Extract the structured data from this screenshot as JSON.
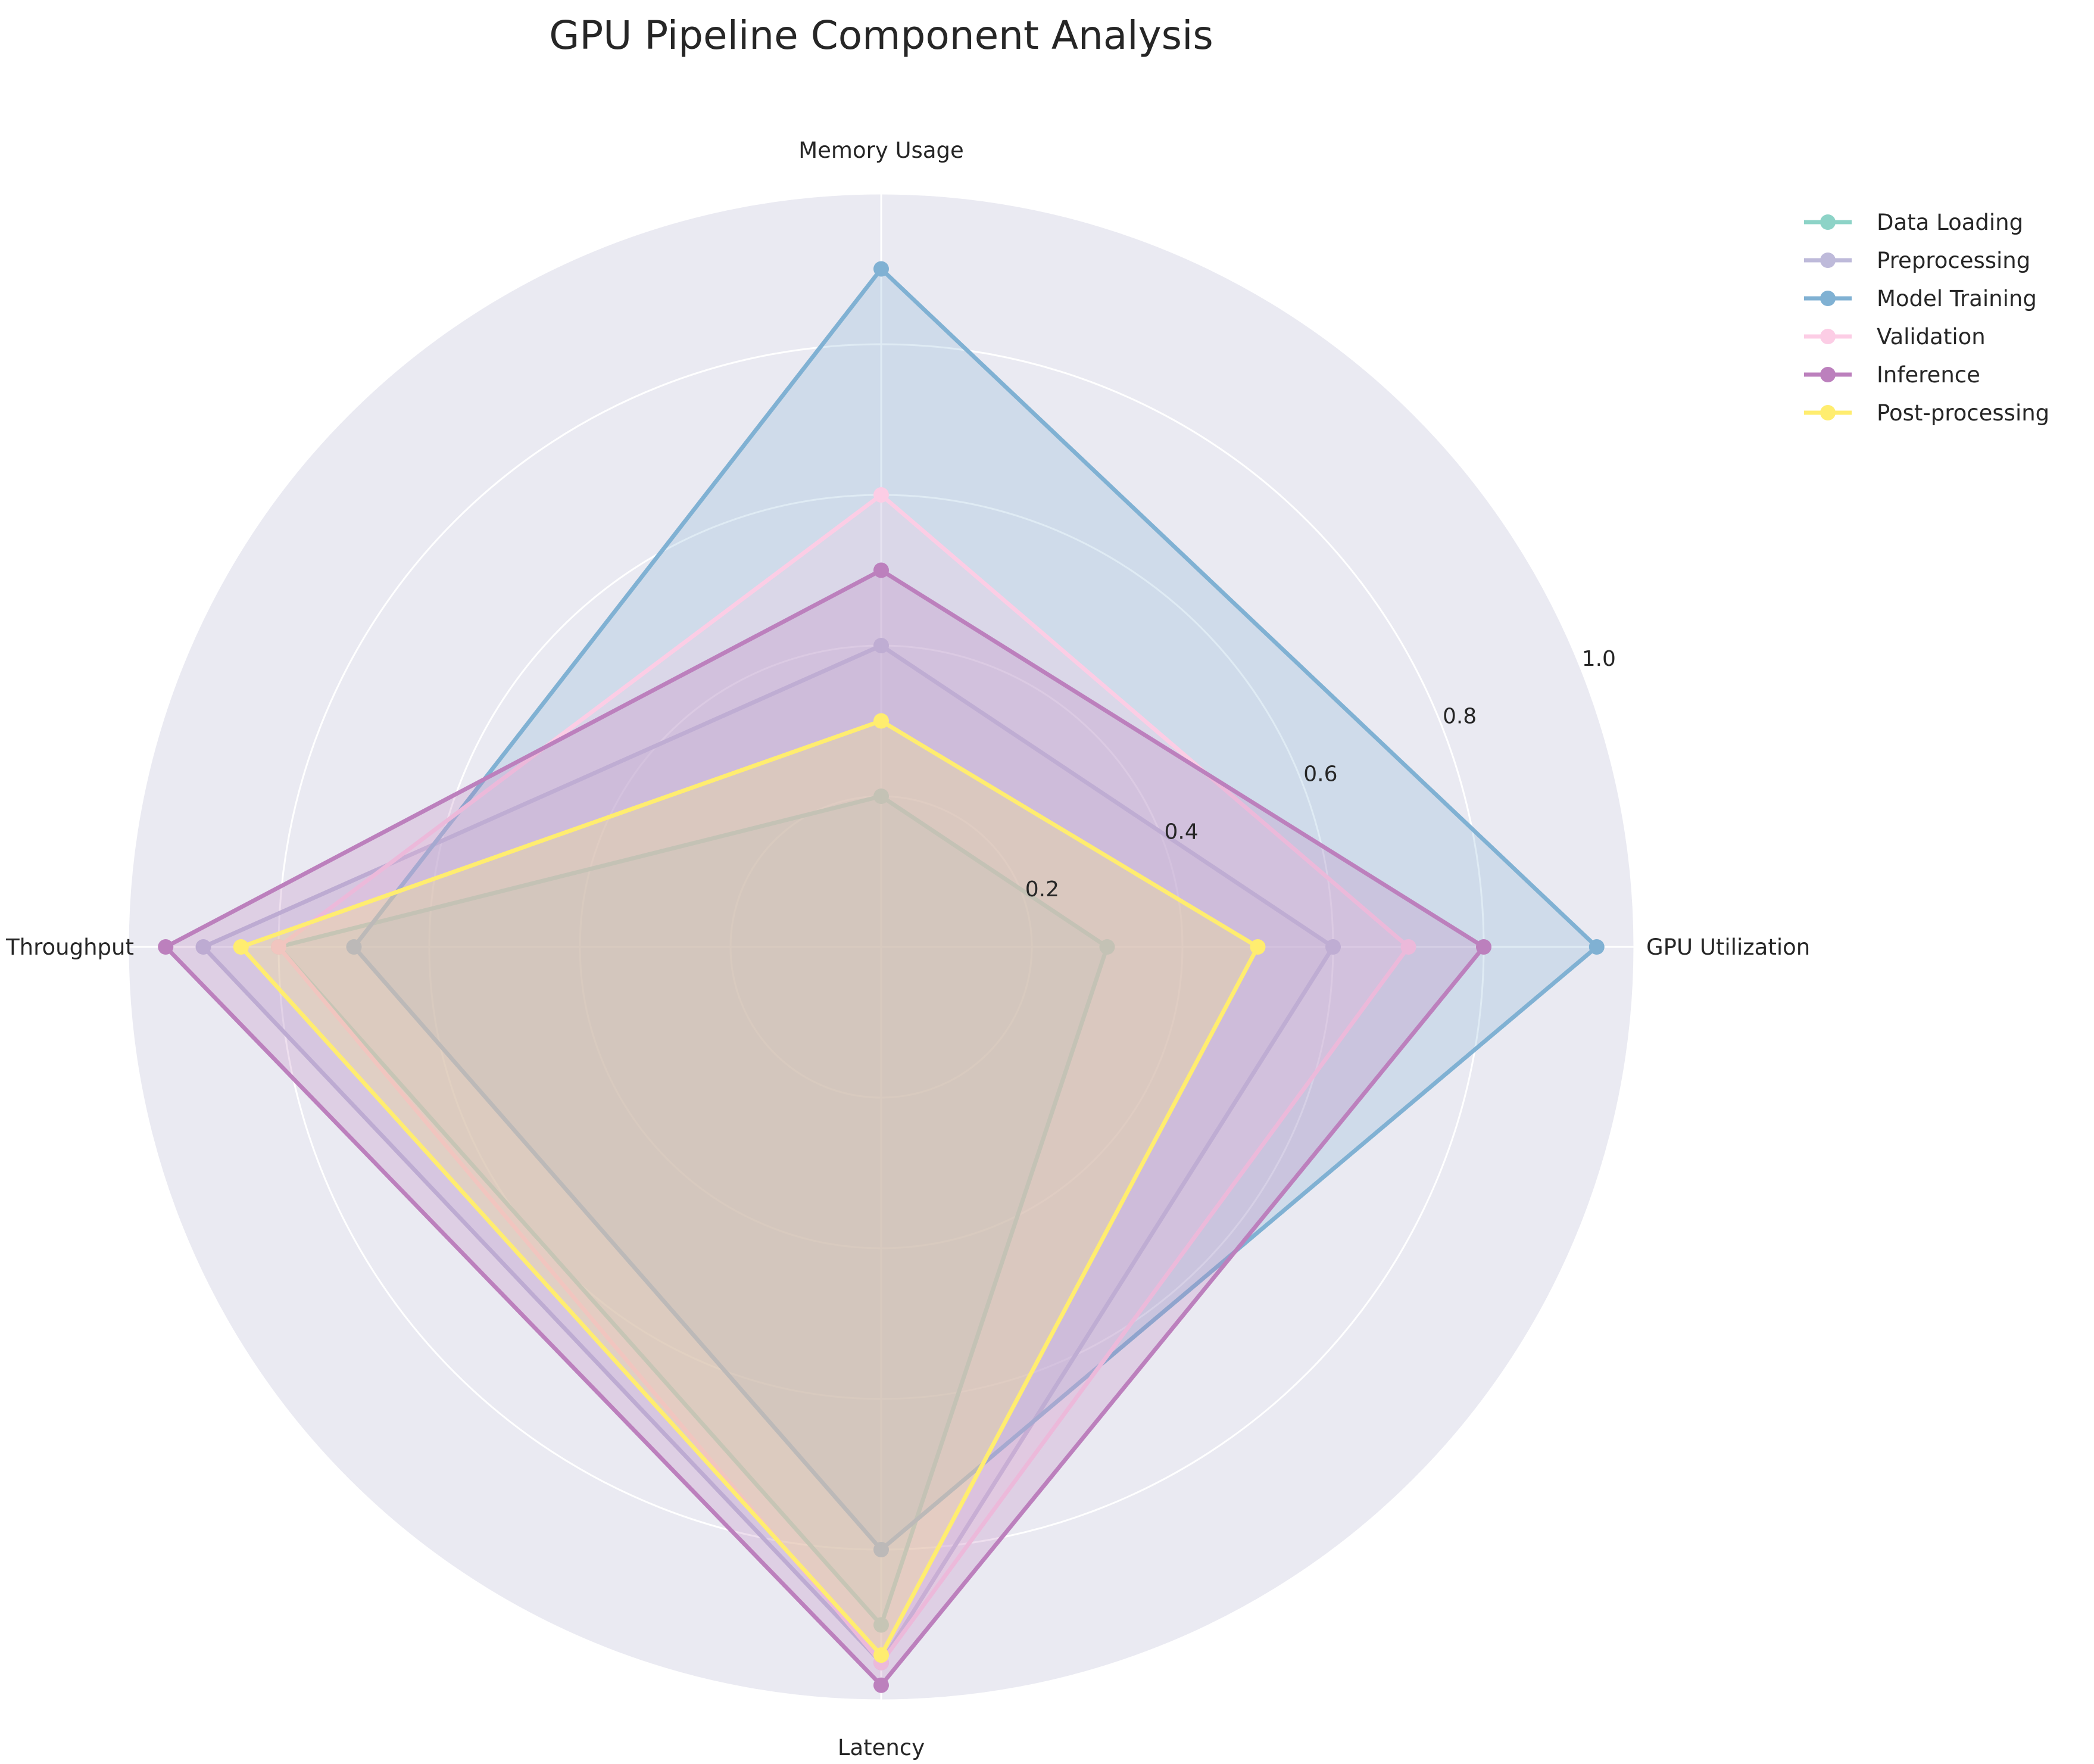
{
  "chart_data": {
    "type": "radar",
    "title": "GPU Pipeline Component Analysis",
    "axes": [
      "GPU Utilization",
      "Memory Usage",
      "Throughput",
      "Latency"
    ],
    "rlim": [
      0,
      1.0
    ],
    "radial_ticks": [
      0.2,
      0.4,
      0.6,
      0.8,
      1.0
    ],
    "radial_tick_labels": [
      "0.2",
      "0.4",
      "0.6",
      "0.8",
      "1.0"
    ],
    "grid": true,
    "legend_position": "top-right, outside plot",
    "series": [
      {
        "name": "Data Loading",
        "values": [
          0.3,
          0.2,
          0.8,
          0.9
        ],
        "color": "#8dd3c7"
      },
      {
        "name": "Preprocessing",
        "values": [
          0.6,
          0.4,
          0.9,
          0.95
        ],
        "color": "#bebada"
      },
      {
        "name": "Model Training",
        "values": [
          0.95,
          0.9,
          0.7,
          0.8
        ],
        "color": "#80b1d3"
      },
      {
        "name": "Validation",
        "values": [
          0.7,
          0.6,
          0.8,
          0.95
        ],
        "color": "#fccde5"
      },
      {
        "name": "Inference",
        "values": [
          0.8,
          0.5,
          0.95,
          0.98
        ],
        "color": "#bc80bd"
      },
      {
        "name": "Post-processing",
        "values": [
          0.5,
          0.3,
          0.85,
          0.94
        ],
        "color": "#ffed6f"
      }
    ],
    "background_color": "#eaeaf2",
    "grid_color": "#ffffff"
  }
}
